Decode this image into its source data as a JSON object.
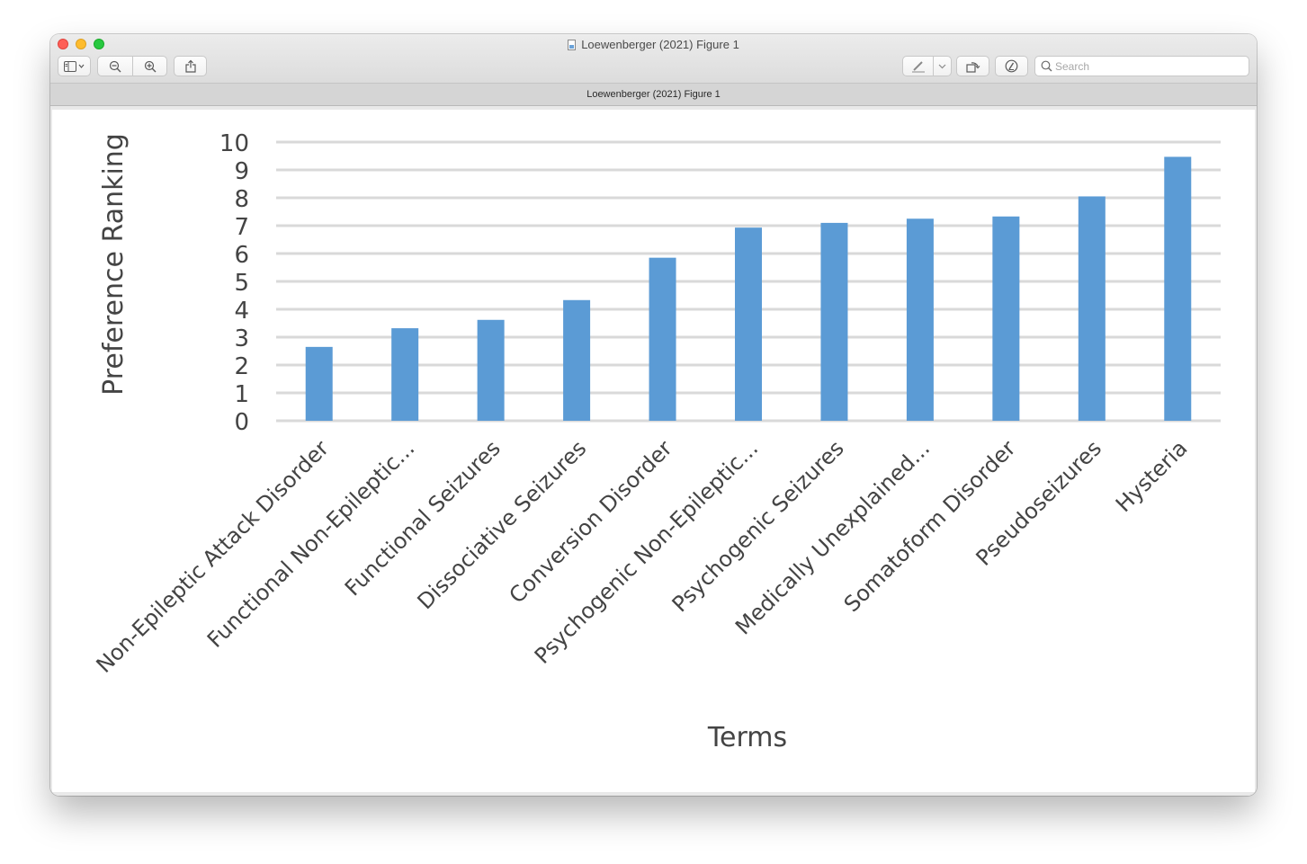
{
  "window": {
    "title": "Loewenberger (2021) Figure 1",
    "tab_title": "Loewenberger (2021) Figure 1"
  },
  "toolbar": {
    "sidebar_icon": "sidebar-icon",
    "zoom_out_icon": "zoom-out-icon",
    "zoom_in_icon": "zoom-in-icon",
    "share_icon": "share-icon",
    "markup_icon": "markup-pen-icon",
    "rotate_icon": "rotate-icon",
    "annotate_icon": "annotate-icon"
  },
  "search": {
    "placeholder": "Search",
    "value": ""
  },
  "colors": {
    "bar": "#5b9bd5",
    "grid": "#d9d9d9",
    "text": "#444444"
  },
  "chart_data": {
    "type": "bar",
    "title": "",
    "xlabel": "Terms",
    "ylabel": "Preference Ranking",
    "ylim": [
      0,
      10
    ],
    "yticks": [
      0,
      1,
      2,
      3,
      4,
      5,
      6,
      7,
      8,
      9,
      10
    ],
    "grid": true,
    "categories": [
      "Non-Epileptic Attack Disorder",
      "Functional Non-Epileptic...",
      "Functional Seizures",
      "Dissociative Seizures",
      "Conversion Disorder",
      "Psychogenic Non-Epileptic...",
      "Psychogenic Seizures",
      "Medically Unexplained...",
      "Somatoform Disorder",
      "Pseudoseizures",
      "Hysteria"
    ],
    "values": [
      2.65,
      3.32,
      3.62,
      4.33,
      5.85,
      6.93,
      7.1,
      7.25,
      7.33,
      8.05,
      9.47
    ]
  }
}
